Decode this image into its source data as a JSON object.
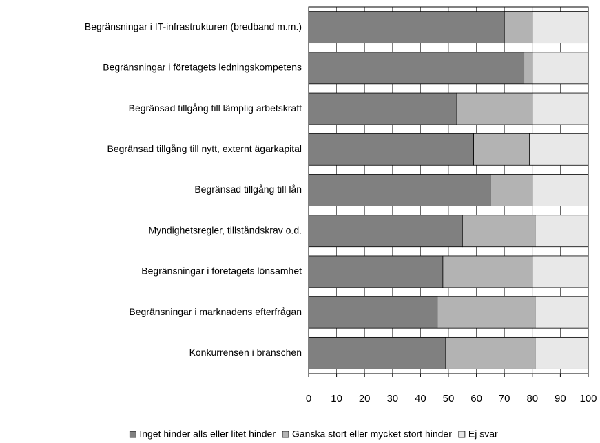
{
  "chart_data": {
    "type": "stacked_bar_horizontal",
    "categories": [
      "Begränsningar i IT-infrastrukturen (bredband m.m.)",
      "Begränsningar i företagets ledningskompetens",
      "Begränsad tillgång till lämplig arbetskraft",
      "Begränsad tillgång till nytt, externt ägarkapital",
      "Begränsad tillgång till lån",
      "Myndighetsregler, tillståndskrav o.d.",
      "Begränsningar i företagets lönsamhet",
      "Begränsningar i marknadens efterfrågan",
      "Konkurrensen i branschen"
    ],
    "series": [
      {
        "name": "Inget hinder alls eller litet hinder",
        "color": "#808080",
        "values": [
          70,
          77,
          53,
          59,
          65,
          55,
          48,
          46,
          49
        ]
      },
      {
        "name": "Ganska stort eller mycket stort hinder",
        "color": "#b3b3b3",
        "values": [
          10,
          3,
          27,
          20,
          15,
          26,
          32,
          35,
          32
        ]
      },
      {
        "name": "Ej svar",
        "color": "#e8e8e8",
        "values": [
          20,
          20,
          20,
          21,
          20,
          19,
          20,
          19,
          19
        ]
      }
    ],
    "xlim": [
      0,
      100
    ],
    "xticks": [
      0,
      10,
      20,
      30,
      40,
      50,
      60,
      70,
      80,
      90,
      100
    ],
    "grid": true,
    "legend": "bottom"
  }
}
